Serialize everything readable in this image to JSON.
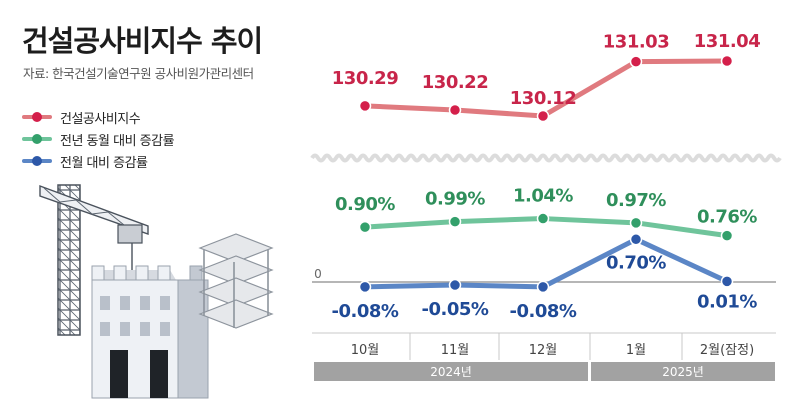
{
  "title": "건설공사비지수 추이",
  "source": "자료: 한국건설기술연구원 공사비원가관리센터",
  "colors": {
    "index_line": "#e07a7f",
    "index_dot": "#d41f4a",
    "index_text": "#c8254a",
    "yoy_line": "#6fc49b",
    "yoy_dot": "#33a06b",
    "yoy_text": "#2f8f5b",
    "mom_line": "#5b86c6",
    "mom_dot": "#2d58a8",
    "mom_text": "#1f4a96",
    "year_band": "#a2a2a2"
  },
  "legend": [
    {
      "label": "건설공사비지수",
      "series": "index"
    },
    {
      "label": "전년 동월 대비 증감률",
      "series": "yoy"
    },
    {
      "label": "전월 대비 증감률",
      "series": "mom"
    }
  ],
  "chart_data": {
    "type": "line",
    "title": "건설공사비지수 추이",
    "categories": [
      "10월",
      "11월",
      "12월",
      "1월",
      "2월(잠정)"
    ],
    "year_groups": [
      {
        "label": "2024년",
        "months": [
          "10월",
          "11월",
          "12월"
        ]
      },
      {
        "label": "2025년",
        "months": [
          "1월",
          "2월(잠정)"
        ]
      }
    ],
    "zero_label": "0",
    "axis_break": true,
    "series": [
      {
        "id": "index",
        "name": "건설공사비지수",
        "values": [
          130.29,
          130.22,
          130.12,
          131.03,
          131.04
        ],
        "labels": [
          "130.29",
          "130.22",
          "130.12",
          "131.03",
          "131.04"
        ]
      },
      {
        "id": "yoy",
        "name": "전년 동월 대비 증감률",
        "values": [
          0.9,
          0.99,
          1.04,
          0.97,
          0.76
        ],
        "labels": [
          "0.90%",
          "0.99%",
          "1.04%",
          "0.97%",
          "0.76%"
        ]
      },
      {
        "id": "mom",
        "name": "전월 대비 증감률",
        "values": [
          -0.08,
          -0.05,
          -0.08,
          0.7,
          0.01
        ],
        "labels": [
          "-0.08%",
          "-0.05%",
          "-0.08%",
          "0.70%",
          "0.01%"
        ]
      }
    ]
  }
}
